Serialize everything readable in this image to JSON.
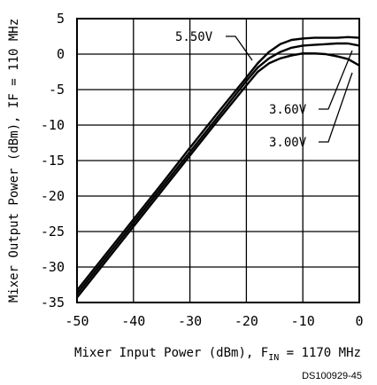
{
  "chart_data": {
    "type": "line",
    "xlabel": "Mixer Input Power (dBm), F",
    "xlabel_sub": "IN",
    "xlabel_suffix": " = 1170 MHz",
    "ylabel": "Mixer Output Power (dBm), IF = 110 MHz",
    "xlim": [
      -50,
      0
    ],
    "ylim": [
      -35,
      5
    ],
    "xticks": [
      -50,
      -40,
      -30,
      -20,
      -10,
      0
    ],
    "yticks": [
      5,
      0,
      -5,
      -10,
      -15,
      -20,
      -25,
      -30,
      -35
    ],
    "grid": true,
    "series": [
      {
        "name": "5.50V",
        "x": [
          -50,
          -45,
          -40,
          -35,
          -30,
          -25,
          -20,
          -18,
          -16,
          -14,
          -12,
          -10,
          -8,
          -6,
          -4,
          -2,
          0
        ],
        "y": [
          -33.3,
          -28.3,
          -23.3,
          -18.3,
          -13.2,
          -8.2,
          -3.3,
          -1.3,
          0.3,
          1.4,
          2.0,
          2.2,
          2.3,
          2.3,
          2.3,
          2.4,
          2.3
        ]
      },
      {
        "name": "3.60V",
        "x": [
          -50,
          -45,
          -40,
          -35,
          -30,
          -25,
          -20,
          -18,
          -16,
          -14,
          -12,
          -10,
          -8,
          -6,
          -4,
          -2,
          0
        ],
        "y": [
          -33.8,
          -28.8,
          -23.8,
          -18.8,
          -13.8,
          -8.8,
          -3.8,
          -1.9,
          -0.6,
          0.3,
          0.9,
          1.2,
          1.3,
          1.4,
          1.5,
          1.5,
          1.2
        ]
      },
      {
        "name": "3.00V",
        "x": [
          -50,
          -45,
          -40,
          -35,
          -30,
          -25,
          -20,
          -18,
          -16,
          -14,
          -12,
          -10,
          -8,
          -6,
          -4,
          -2,
          0
        ],
        "y": [
          -34.3,
          -29.3,
          -24.3,
          -19.3,
          -14.3,
          -9.3,
          -4.4,
          -2.5,
          -1.3,
          -0.6,
          -0.2,
          0.1,
          0.1,
          0.0,
          -0.3,
          -0.7,
          -1.6
        ]
      }
    ],
    "callouts": [
      {
        "label": "5.50V",
        "series": 0
      },
      {
        "label": "3.60V",
        "series": 1
      },
      {
        "label": "3.00V",
        "series": 2
      }
    ],
    "doc_id": "DS100929-45"
  }
}
